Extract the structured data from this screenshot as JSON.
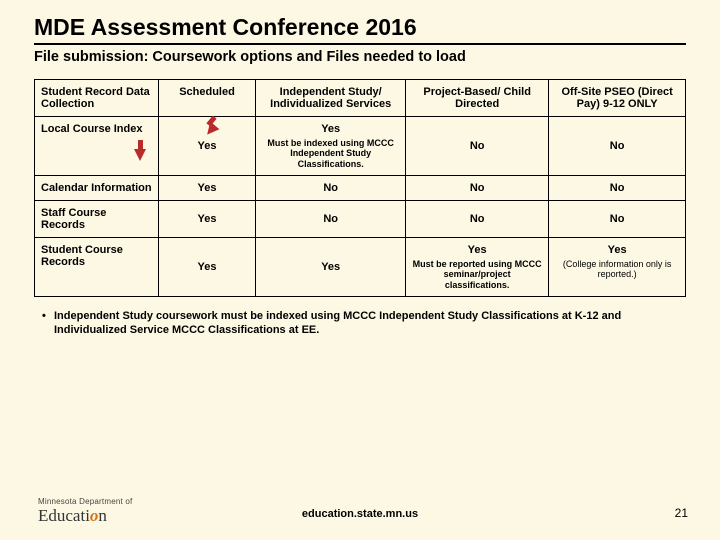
{
  "title": "MDE Assessment Conference 2016",
  "subtitle": "File submission: Coursework options and Files needed to load",
  "table": {
    "head": {
      "rowhead": "Student Record Data Collection",
      "c1": "Scheduled",
      "c2": "Independent Study/ Individualized Services",
      "c3": "Project-Based/ Child Directed",
      "c4": "Off-Site PSEO (Direct Pay) 9-12 ONLY"
    },
    "rows": [
      {
        "label": "Local Course Index",
        "c1": "Yes",
        "c2": "Yes",
        "c2note": "Must be indexed using MCCC Independent Study Classifications.",
        "c3": "No",
        "c4": "No"
      },
      {
        "label": "Calendar Information",
        "c1": "Yes",
        "c2": "No",
        "c3": "No",
        "c4": "No"
      },
      {
        "label": "Staff Course Records",
        "c1": "Yes",
        "c2": "No",
        "c3": "No",
        "c4": "No"
      },
      {
        "label": "Student Course Records",
        "c1": "Yes",
        "c2": "Yes",
        "c3": "Yes",
        "c3note": "Must be reported using MCCC seminar/project classifications.",
        "c4": "Yes",
        "c4note": "(College information only is reported.)"
      }
    ]
  },
  "bullet": "Independent Study coursework must be indexed using MCCC Independent Study Classifications at K-12 and Individualized Service MCCC Classifications at EE.",
  "logo_top": "Minnesota Department of",
  "logo_main_a": "Educati",
  "logo_main_b": "o",
  "logo_main_c": "n",
  "footer_link": "education.state.mn.us",
  "page_number": "21"
}
